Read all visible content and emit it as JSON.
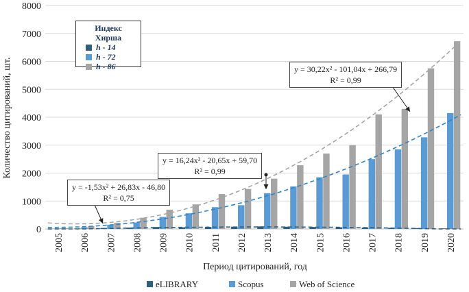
{
  "chart_data": {
    "type": "bar",
    "title": "",
    "xlabel": "Период цитирований, год",
    "ylabel": "Количество цитирований, шт.",
    "ylim": [
      0,
      8000
    ],
    "yticks": [
      0,
      1000,
      2000,
      3000,
      4000,
      5000,
      6000,
      7000,
      8000
    ],
    "categories": [
      "2005",
      "2006",
      "2007",
      "2008",
      "2009",
      "2010",
      "2011",
      "2012",
      "2013",
      "2014",
      "2015",
      "2016",
      "2017",
      "2018",
      "2019",
      "2020"
    ],
    "series": [
      {
        "name": "eLIBRARY",
        "color": "#2e5f7d",
        "values": [
          5,
          15,
          35,
          50,
          70,
          60,
          70,
          80,
          90,
          80,
          70,
          60,
          50,
          40,
          30,
          20
        ]
      },
      {
        "name": "Scopus",
        "color": "#5b9bd5",
        "values": [
          20,
          60,
          150,
          230,
          430,
          560,
          780,
          850,
          1280,
          1520,
          1850,
          1950,
          2500,
          2850,
          3280,
          4150
        ]
      },
      {
        "name": "Web of Science",
        "color": "#a5a5a5",
        "values": [
          30,
          100,
          220,
          400,
          690,
          880,
          1250,
          1430,
          1800,
          2280,
          2700,
          3000,
          4100,
          4300,
          5750,
          6720
        ]
      }
    ],
    "trendlines": [
      {
        "series": "eLIBRARY",
        "color": "#2e5f7d",
        "coef": [
          -1.53,
          26.83,
          -46.8
        ]
      },
      {
        "series": "Scopus",
        "color": "#2e86c9",
        "coef": [
          16.24,
          -20.65,
          59.7
        ]
      },
      {
        "series": "Web of Science",
        "color": "#a5a5a5",
        "coef": [
          30.22,
          -101.04,
          266.79
        ]
      }
    ],
    "annotations": [
      {
        "series": "eLIBRARY",
        "equation": "y = -1,53x² + 26,83x - 46,80",
        "r2": "R² = 0,75"
      },
      {
        "series": "Scopus",
        "equation": "y = 16,24x² - 20,65x + 59,70",
        "r2": "R² = 0,99"
      },
      {
        "series": "Web of Science",
        "equation": "y = 30,22x² - 101,04x + 266,79",
        "r2": "R² = 0,99"
      }
    ],
    "hirsch_legend": {
      "title_line1": "Индекс",
      "title_line2": "Хирша",
      "items": [
        {
          "label": "h - 14",
          "color": "#2e5f7d"
        },
        {
          "label": "h - 72",
          "color": "#5b9bd5"
        },
        {
          "label": "h - 86",
          "color": "#a5a5a5"
        }
      ]
    },
    "legend_position": "bottom"
  }
}
